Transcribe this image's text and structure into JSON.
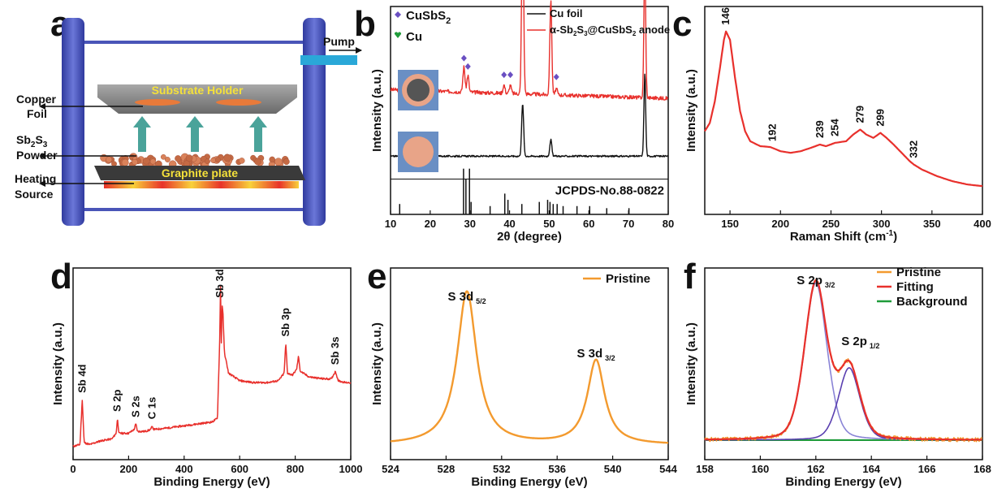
{
  "panels": {
    "a": "a",
    "b": "b",
    "c": "c",
    "d": "d",
    "e": "e",
    "f": "f"
  },
  "schematic": {
    "pump": "Pump",
    "substrate_holder": "Substrate Holder",
    "graphite_plate": "Graphite plate",
    "copper_foil": [
      "Copper",
      "Foil"
    ],
    "powder_main": "Sb",
    "powder_sub1": "2",
    "powder_mid": "S",
    "powder_sub2": "3",
    "powder_word": "Powder",
    "heating": [
      "Heating",
      "Source"
    ]
  },
  "colors": {
    "red": "#e8302c",
    "black": "#111111",
    "orange": "#f39a2e",
    "green": "#1f9b3a",
    "purple": "#6a4fc2",
    "blue_frame": "#4a55b8",
    "cyan": "#2aa8d8",
    "arrow": "#4aa39a"
  },
  "chart_data": [
    {
      "panel": "b",
      "type": "line",
      "xlabel": "2θ (degree)",
      "ylabel": "Intensity (a.u.)",
      "xlim": [
        10,
        80
      ],
      "xticks": [
        10,
        20,
        30,
        40,
        50,
        60,
        70,
        80
      ],
      "legend_markers": [
        {
          "symbol": "diamond",
          "label_main": "CuSbS",
          "label_sub": "2",
          "color": "#6a4fc2"
        },
        {
          "symbol": "heart",
          "label_main": "Cu",
          "label_sub": "",
          "color": "#1f9b3a"
        }
      ],
      "legend_lines": [
        {
          "name": "Cu foil",
          "color": "#111111"
        },
        {
          "name": "α-Sb",
          "name_parts": [
            "α-Sb",
            "2",
            "S",
            "3",
            "@CuSbS",
            "2",
            " anode"
          ],
          "color": "#e8302c"
        }
      ],
      "reference_label": "JCPDS-No.88-0822",
      "series": [
        {
          "name": "α-Sb2S3@CuSbS2 anode",
          "color": "#e8302c",
          "baseline": 0.6,
          "peaks": [
            [
              28.5,
              0.12
            ],
            [
              29.5,
              0.08
            ],
            [
              38.6,
              0.04
            ],
            [
              40.2,
              0.04
            ],
            [
              43.3,
              0.88
            ],
            [
              50.4,
              0.45
            ],
            [
              51.8,
              0.03
            ],
            [
              74.1,
              0.68
            ]
          ]
        },
        {
          "name": "Cu foil",
          "color": "#111111",
          "baseline": 0.28,
          "peaks": [
            [
              43.3,
              0.25
            ],
            [
              50.4,
              0.08
            ],
            [
              74.1,
              0.4
            ]
          ]
        }
      ],
      "cusbs2_markers": [
        28.5,
        29.5,
        38.6,
        40.2,
        51.8
      ],
      "cu_markers": [
        43.3,
        50.4,
        74.1
      ],
      "reference_lines": [
        [
          12.3,
          0.05
        ],
        [
          28.4,
          0.22
        ],
        [
          29.0,
          0.17
        ],
        [
          29.9,
          0.22
        ],
        [
          30.3,
          0.06
        ],
        [
          35.1,
          0.04
        ],
        [
          38.8,
          0.1
        ],
        [
          39.6,
          0.07
        ],
        [
          43.1,
          0.05
        ],
        [
          47.5,
          0.06
        ],
        [
          49.6,
          0.07
        ],
        [
          50.2,
          0.06
        ],
        [
          51.0,
          0.05
        ],
        [
          52.0,
          0.05
        ],
        [
          53.5,
          0.04
        ],
        [
          57.0,
          0.04
        ],
        [
          60.2,
          0.04
        ],
        [
          64.5,
          0.03
        ],
        [
          70.1,
          0.03
        ]
      ]
    },
    {
      "panel": "c",
      "type": "line",
      "xlabel": "Raman Shift (cm",
      "xlabel_sup": "-1",
      "xlabel_end": ")",
      "ylabel": "Intensity (a.u.)",
      "xlim": [
        125,
        400
      ],
      "xticks": [
        150,
        200,
        250,
        300,
        350,
        400
      ],
      "peak_labels": [
        146,
        192,
        239,
        254,
        279,
        299,
        332
      ],
      "series": [
        {
          "name": "Raman",
          "color": "#e8302c",
          "points": [
            [
              125,
              0.4
            ],
            [
              130,
              0.45
            ],
            [
              135,
              0.58
            ],
            [
              140,
              0.78
            ],
            [
              144,
              0.95
            ],
            [
              146,
              1.0
            ],
            [
              150,
              0.95
            ],
            [
              155,
              0.72
            ],
            [
              160,
              0.52
            ],
            [
              165,
              0.4
            ],
            [
              170,
              0.34
            ],
            [
              180,
              0.31
            ],
            [
              190,
              0.305
            ],
            [
              200,
              0.28
            ],
            [
              210,
              0.27
            ],
            [
              220,
              0.28
            ],
            [
              230,
              0.3
            ],
            [
              239,
              0.32
            ],
            [
              245,
              0.31
            ],
            [
              254,
              0.33
            ],
            [
              265,
              0.34
            ],
            [
              272,
              0.38
            ],
            [
              279,
              0.41
            ],
            [
              285,
              0.38
            ],
            [
              292,
              0.36
            ],
            [
              299,
              0.39
            ],
            [
              305,
              0.36
            ],
            [
              312,
              0.32
            ],
            [
              320,
              0.27
            ],
            [
              328,
              0.22
            ],
            [
              332,
              0.2
            ],
            [
              340,
              0.17
            ],
            [
              355,
              0.13
            ],
            [
              370,
              0.1
            ],
            [
              385,
              0.08
            ],
            [
              400,
              0.07
            ]
          ]
        }
      ]
    },
    {
      "panel": "d",
      "type": "line",
      "xlabel": "Binding Energy (eV)",
      "ylabel": "Intensity (a.u.)",
      "xlim": [
        0,
        1000
      ],
      "xticks": [
        0,
        200,
        400,
        600,
        800,
        1000
      ],
      "peak_labels": [
        {
          "x": 33,
          "text": "Sb 4d"
        },
        {
          "x": 160,
          "text": "S 2p"
        },
        {
          "x": 226,
          "text": "S 2s"
        },
        {
          "x": 285,
          "text": "C 1s"
        },
        {
          "x": 530,
          "text": "Sb 3d"
        },
        {
          "x": 766,
          "text": "Sb 3p"
        },
        {
          "x": 945,
          "text": "Sb 3s"
        }
      ],
      "series": [
        {
          "name": "Survey",
          "color": "#e8302c",
          "points": [
            [
              0,
              0.05
            ],
            [
              25,
              0.06
            ],
            [
              33,
              0.3
            ],
            [
              40,
              0.07
            ],
            [
              60,
              0.06
            ],
            [
              100,
              0.08
            ],
            [
              140,
              0.09
            ],
            [
              155,
              0.12
            ],
            [
              160,
              0.2
            ],
            [
              165,
              0.12
            ],
            [
              200,
              0.12
            ],
            [
              220,
              0.14
            ],
            [
              226,
              0.17
            ],
            [
              232,
              0.13
            ],
            [
              260,
              0.13
            ],
            [
              280,
              0.14
            ],
            [
              285,
              0.16
            ],
            [
              290,
              0.14
            ],
            [
              350,
              0.15
            ],
            [
              400,
              0.16
            ],
            [
              450,
              0.17
            ],
            [
              500,
              0.18
            ],
            [
              520,
              0.2
            ],
            [
              528,
              0.62
            ],
            [
              531,
              0.9
            ],
            [
              534,
              0.6
            ],
            [
              537,
              0.8
            ],
            [
              540,
              0.75
            ],
            [
              545,
              0.55
            ],
            [
              560,
              0.44
            ],
            [
              600,
              0.4
            ],
            [
              650,
              0.39
            ],
            [
              700,
              0.39
            ],
            [
              740,
              0.4
            ],
            [
              760,
              0.44
            ],
            [
              766,
              0.6
            ],
            [
              772,
              0.44
            ],
            [
              790,
              0.43
            ],
            [
              805,
              0.46
            ],
            [
              812,
              0.53
            ],
            [
              818,
              0.45
            ],
            [
              850,
              0.42
            ],
            [
              900,
              0.41
            ],
            [
              930,
              0.41
            ],
            [
              945,
              0.45
            ],
            [
              955,
              0.4
            ],
            [
              980,
              0.39
            ],
            [
              1000,
              0.39
            ]
          ]
        }
      ]
    },
    {
      "panel": "e",
      "type": "line",
      "xlabel": "Binding Energy (eV)",
      "ylabel": "Intensity (a.u.)",
      "xlim": [
        524,
        544
      ],
      "xticks": [
        524,
        528,
        532,
        536,
        540,
        544
      ],
      "legend": [
        "Pristine"
      ],
      "peak_labels": [
        {
          "x": 529.5,
          "text": "S 3d",
          "sub": "5/2"
        },
        {
          "x": 538.8,
          "text": "S 3d",
          "sub": "3/2"
        }
      ],
      "series": [
        {
          "name": "Pristine",
          "color": "#f39a2e",
          "peaks": [
            [
              529.5,
              1.0,
              0.85
            ],
            [
              538.8,
              0.55,
              0.75
            ]
          ],
          "baseline": 0.02
        }
      ]
    },
    {
      "panel": "f",
      "type": "line",
      "xlabel": "Binding Energy (eV)",
      "ylabel": "Intensity (a.u.)",
      "xlim": [
        158,
        168
      ],
      "xticks": [
        158,
        160,
        162,
        164,
        166,
        168
      ],
      "legend": [
        "Pristine",
        "Fitting",
        "Background"
      ],
      "peak_labels": [
        {
          "x": 162.0,
          "text": "S 2p",
          "sub": "3/2"
        },
        {
          "x": 163.2,
          "text": "S 2p",
          "sub": "1/2"
        }
      ],
      "components": [
        {
          "center": 162.0,
          "amp": 1.0,
          "width": 0.42
        },
        {
          "center": 163.2,
          "amp": 0.46,
          "width": 0.4
        }
      ],
      "series": [
        {
          "name": "Pristine",
          "color": "#f39a2e"
        },
        {
          "name": "Fitting",
          "color": "#e8302c"
        },
        {
          "name": "Background",
          "color": "#1f9b3a"
        }
      ]
    }
  ]
}
